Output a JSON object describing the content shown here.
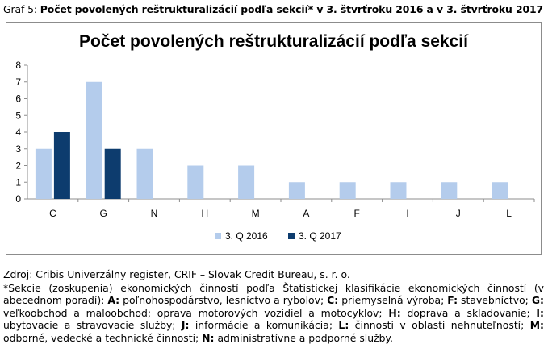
{
  "caption": {
    "prefix": "Graf 5: ",
    "title": "Počet povolených reštrukturalizácií podľa sekcií* v 3. štvrťroku 2016 a v 3. štvrťroku 2017"
  },
  "source": "Zdroj: Cribis Univerzálny register, CRIF – Slovak Credit Bureau, s. r. o.",
  "footnote": {
    "intro": "*Sekcie (zoskupenia) ekonomických činností podľa Štatistickej klasifikácie ekonomických činností (v abecednom poradí):",
    "items": [
      {
        "code": "A:",
        "text": "poľnohospodárstvo, lesníctvo a rybolov;"
      },
      {
        "code": "C:",
        "text": "priemyselná výroba;"
      },
      {
        "code": "F:",
        "text": "stavebníctvo;"
      },
      {
        "code": "G:",
        "text": "veľkoobchod a maloobchod; oprava motorových vozidiel a motocyklov;"
      },
      {
        "code": "H:",
        "text": "doprava a skladovanie;"
      },
      {
        "code": "I:",
        "text": "ubytovacie a stravovacie služby;"
      },
      {
        "code": "J:",
        "text": "informácie a komunikácia;"
      },
      {
        "code": "L:",
        "text": "činnosti v oblasti nehnuteľností;"
      },
      {
        "code": "M:",
        "text": "odborné, vedecké a technické činnosti;"
      },
      {
        "code": "N:",
        "text": "administratívne a podporné služby."
      }
    ]
  },
  "chart_data": {
    "type": "bar",
    "title": "Počet povolených reštrukturalizácií podľa sekcií",
    "categories": [
      "C",
      "G",
      "N",
      "H",
      "M",
      "A",
      "F",
      "I",
      "J",
      "L"
    ],
    "series": [
      {
        "name": "3. Q 2016",
        "color": "#b4ccec",
        "values": [
          3,
          7,
          3,
          2,
          2,
          1,
          1,
          1,
          1,
          1
        ]
      },
      {
        "name": "3. Q 2017",
        "color": "#0d3c6e",
        "values": [
          4,
          3,
          0,
          0,
          0,
          0,
          0,
          0,
          0,
          0
        ]
      }
    ],
    "ylim": [
      0,
      8
    ],
    "yticks": [
      0,
      1,
      2,
      3,
      4,
      5,
      6,
      7,
      8
    ],
    "grid": false,
    "legend_position": "bottom"
  }
}
